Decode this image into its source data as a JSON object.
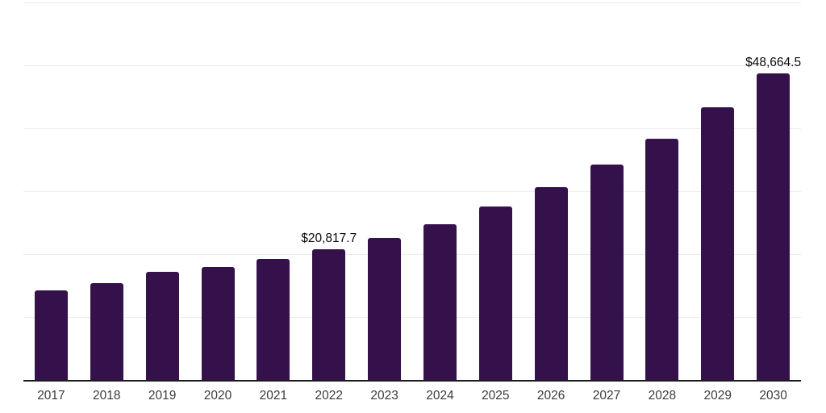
{
  "chart_data": {
    "type": "bar",
    "title": "",
    "xlabel": "",
    "ylabel": "",
    "categories": [
      "2017",
      "2018",
      "2019",
      "2020",
      "2021",
      "2022",
      "2023",
      "2024",
      "2025",
      "2026",
      "2027",
      "2028",
      "2029",
      "2030"
    ],
    "values": [
      14200,
      15400,
      17200,
      18000,
      19300,
      20817.7,
      22600,
      24800,
      27600,
      30600,
      34300,
      38400,
      43300,
      48664.5
    ],
    "data_labels": {
      "2022": "$20,817.7",
      "2030": "$48,664.5"
    },
    "ylim": [
      0,
      60000
    ],
    "gridline_interval": 10000,
    "grid": "horizontal-only",
    "legend": "none",
    "y_tick_labels_visible": false,
    "colors": {
      "bar": "#35114c",
      "gridline": "#ececec",
      "axis_line": "#1a1a1a",
      "x_tick_label": "#3b3b3b",
      "data_label": "#0a0a0a",
      "background": "#ffffff"
    }
  }
}
